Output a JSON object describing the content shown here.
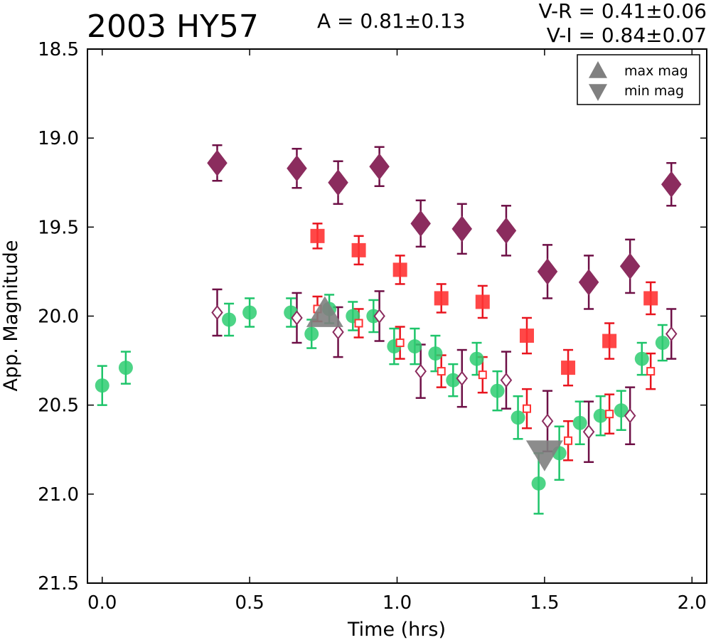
{
  "header": {
    "title": "2003 HY57",
    "amplitude": "A  = 0.81±0.13",
    "color_vr": "V-R = 0.41±0.06",
    "color_vi": "V-I  = 0.84±0.07"
  },
  "chart_data": {
    "type": "scatter",
    "title": "2003 HY57",
    "xlabel": "Time (hrs)",
    "ylabel": "App. Magnitude",
    "xlim": [
      -0.05,
      2.05
    ],
    "ylim": [
      21.5,
      18.5
    ],
    "y_inverted": true,
    "x_ticks": [
      0.0,
      0.5,
      1.0,
      1.5,
      2.0
    ],
    "x_tick_labels": [
      "0.0",
      "0.5",
      "1.0",
      "1.5",
      "2.0"
    ],
    "y_ticks": [
      18.5,
      19.0,
      19.5,
      20.0,
      20.5,
      21.0,
      21.5
    ],
    "y_tick_labels": [
      "18.5",
      "19.0",
      "19.5",
      "20.0",
      "20.5",
      "21.0",
      "21.5"
    ],
    "grid": false,
    "legend_position": "top-right",
    "series": [
      {
        "marker": "circle",
        "filled": true,
        "color": "#2ecc71",
        "err_color": "#1ec46a",
        "x": [
          0.0,
          0.08,
          0.43,
          0.5,
          0.64,
          0.71,
          0.77,
          0.85,
          0.92,
          0.99,
          1.06,
          1.13,
          1.19,
          1.27,
          1.34,
          1.41,
          1.48,
          1.55,
          1.62,
          1.69,
          1.76,
          1.83,
          1.9
        ],
        "y": [
          20.39,
          20.29,
          20.02,
          19.98,
          19.98,
          20.1,
          19.96,
          20.0,
          20.0,
          20.17,
          20.17,
          20.21,
          20.36,
          20.24,
          20.42,
          20.57,
          20.94,
          20.77,
          20.6,
          20.56,
          20.53,
          20.24,
          20.15
        ],
        "err": [
          0.11,
          0.09,
          0.09,
          0.08,
          0.08,
          0.08,
          0.08,
          0.08,
          0.09,
          0.1,
          0.1,
          0.1,
          0.09,
          0.09,
          0.11,
          0.12,
          0.17,
          0.15,
          0.12,
          0.11,
          0.11,
          0.09,
          0.1
        ]
      },
      {
        "marker": "square",
        "filled": true,
        "color": "#ff3333",
        "err_color": "#e8141e",
        "x": [
          0.73,
          0.87,
          1.01,
          1.15,
          1.29,
          1.44,
          1.58,
          1.72,
          1.86
        ],
        "y": [
          19.55,
          19.63,
          19.74,
          19.9,
          19.92,
          20.11,
          20.29,
          20.14,
          19.9
        ],
        "err": [
          0.07,
          0.08,
          0.08,
          0.08,
          0.09,
          0.1,
          0.1,
          0.1,
          0.09
        ]
      },
      {
        "marker": "square",
        "filled": false,
        "color": "#ff3333",
        "err_color": "#e8141e",
        "x": [
          0.73,
          0.87,
          1.01,
          1.15,
          1.29,
          1.44,
          1.58,
          1.72,
          1.86
        ],
        "y": [
          19.96,
          20.04,
          20.15,
          20.31,
          20.33,
          20.52,
          20.7,
          20.55,
          20.31
        ],
        "err": [
          0.07,
          0.08,
          0.09,
          0.09,
          0.1,
          0.11,
          0.11,
          0.11,
          0.1
        ]
      },
      {
        "marker": "diamond",
        "filled": true,
        "color": "#8b2c5e",
        "err_color": "#6e1046",
        "x": [
          0.39,
          0.66,
          0.8,
          0.94,
          1.08,
          1.22,
          1.37,
          1.51,
          1.65,
          1.79,
          1.93
        ],
        "y": [
          19.14,
          19.17,
          19.25,
          19.16,
          19.48,
          19.51,
          19.52,
          19.75,
          19.81,
          19.72,
          19.26
        ],
        "err": [
          0.1,
          0.11,
          0.12,
          0.11,
          0.13,
          0.14,
          0.14,
          0.15,
          0.15,
          0.15,
          0.12
        ]
      },
      {
        "marker": "diamond",
        "filled": false,
        "color": "#8b2c5e",
        "err_color": "#6e1046",
        "x": [
          0.39,
          0.66,
          0.8,
          0.94,
          1.08,
          1.22,
          1.37,
          1.51,
          1.65,
          1.79,
          1.93
        ],
        "y": [
          19.98,
          20.01,
          20.09,
          20.0,
          20.31,
          20.35,
          20.36,
          20.59,
          20.65,
          20.56,
          20.1
        ],
        "err": [
          0.13,
          0.14,
          0.14,
          0.14,
          0.15,
          0.16,
          0.16,
          0.17,
          0.17,
          0.16,
          0.14
        ]
      }
    ],
    "extrema": [
      {
        "label": "max mag",
        "marker": "triangle-up",
        "color": "#808080",
        "x": 0.755,
        "y": 20.0
      },
      {
        "label": "min mag",
        "marker": "triangle-down",
        "color": "#808080",
        "x": 1.5,
        "y": 20.76
      }
    ],
    "legend": [
      "max mag",
      "min mag"
    ]
  }
}
